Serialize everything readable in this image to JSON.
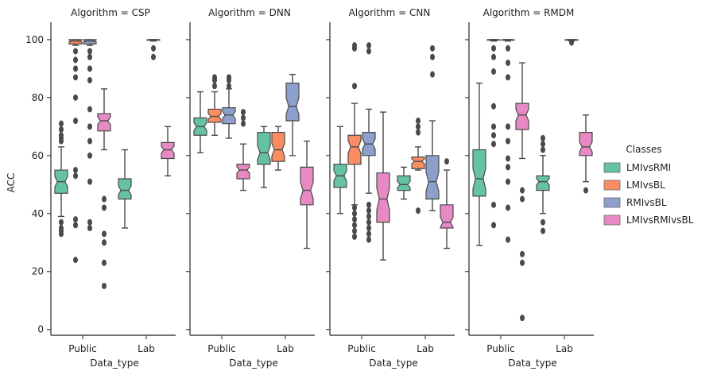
{
  "chart_data": {
    "type": "boxplot",
    "ylabel": "ACC",
    "xlabel": "Data_type",
    "ylim": [
      -2,
      106
    ],
    "yticks": [
      0,
      20,
      40,
      60,
      80,
      100
    ],
    "categories": [
      "Public",
      "Lab"
    ],
    "legend": {
      "title": "Classes",
      "placement": "right",
      "entries": [
        {
          "name": "LMIvsRMI",
          "color": "#66c2a5"
        },
        {
          "name": "LMIvsBL",
          "color": "#fc8d62"
        },
        {
          "name": "RMIvsBL",
          "color": "#8da0cb"
        },
        {
          "name": "LMIvsRMIvsBL",
          "color": "#e78ac3"
        }
      ]
    },
    "panels": [
      {
        "title": "Algorithm = CSP",
        "groups": [
          {
            "category": "Public",
            "series": "LMIvsRMI",
            "whislo": 39,
            "q1": 47,
            "med": 51,
            "q3": 55,
            "whishi": 63,
            "fliers": [
              71,
              69,
              67,
              66,
              65,
              37,
              35,
              34,
              33
            ]
          },
          {
            "category": "Public",
            "series": "LMIvsBL",
            "whislo": 98,
            "q1": 98.5,
            "med": 99.5,
            "q3": 100,
            "whishi": 100,
            "fliers": [
              96,
              93,
              90,
              87,
              80,
              72,
              55,
              53,
              38,
              36,
              24
            ]
          },
          {
            "category": "Public",
            "series": "RMIvsBL",
            "whislo": 98,
            "q1": 98.5,
            "med": 99.5,
            "q3": 100,
            "whishi": 100,
            "fliers": [
              96,
              94,
              90,
              86,
              76,
              70,
              65,
              60,
              51,
              37,
              35
            ]
          },
          {
            "category": "Public",
            "series": "LMIvsRMIvsBL",
            "whislo": 62,
            "q1": 68.5,
            "med": 72,
            "q3": 74.5,
            "whishi": 83,
            "fliers": [
              45,
              42,
              33,
              30,
              23,
              15
            ]
          },
          {
            "category": "Lab",
            "series": "LMIvsRMI",
            "whislo": 35,
            "q1": 45,
            "med": 48,
            "q3": 52,
            "whishi": 62,
            "fliers": []
          },
          {
            "category": "Lab",
            "series": "RMIvsBL",
            "whislo": 99.5,
            "q1": 99.8,
            "med": 100,
            "q3": 100,
            "whishi": 100,
            "fliers": [
              97,
              94
            ]
          },
          {
            "category": "Lab",
            "series": "LMIvsRMIvsBL",
            "whislo": 53,
            "q1": 59,
            "med": 62,
            "q3": 64.5,
            "whishi": 70,
            "fliers": []
          }
        ]
      },
      {
        "title": "Algorithm = DNN",
        "groups": [
          {
            "category": "Public",
            "series": "LMIvsRMI",
            "whislo": 61,
            "q1": 67,
            "med": 70,
            "q3": 73,
            "whishi": 82,
            "fliers": []
          },
          {
            "category": "Public",
            "series": "LMIvsBL",
            "whislo": 67,
            "q1": 71.5,
            "med": 73.5,
            "q3": 76,
            "whishi": 82,
            "fliers": [
              87,
              86,
              84
            ]
          },
          {
            "category": "Public",
            "series": "RMIvsBL",
            "whislo": 66,
            "q1": 71,
            "med": 74,
            "q3": 76.5,
            "whishi": 83,
            "fliers": [
              87,
              86,
              84
            ]
          },
          {
            "category": "Public",
            "series": "LMIvsRMIvsBL",
            "whislo": 48,
            "q1": 52,
            "med": 55,
            "q3": 57,
            "whishi": 64,
            "fliers": [
              75,
              73,
              71
            ]
          },
          {
            "category": "Lab",
            "series": "LMIvsRMI",
            "whislo": 49,
            "q1": 57,
            "med": 61,
            "q3": 68,
            "whishi": 70,
            "fliers": []
          },
          {
            "category": "Lab",
            "series": "LMIvsBL",
            "whislo": 55,
            "q1": 58,
            "med": 62,
            "q3": 68,
            "whishi": 70,
            "fliers": []
          },
          {
            "category": "Lab",
            "series": "RMIvsBL",
            "whislo": 60,
            "q1": 72,
            "med": 77,
            "q3": 85,
            "whishi": 88,
            "fliers": []
          },
          {
            "category": "Lab",
            "series": "LMIvsRMIvsBL",
            "whislo": 28,
            "q1": 43,
            "med": 48,
            "q3": 56,
            "whishi": 65,
            "fliers": []
          }
        ]
      },
      {
        "title": "Algorithm = CNN",
        "groups": [
          {
            "category": "Public",
            "series": "LMIvsRMI",
            "whislo": 40,
            "q1": 49,
            "med": 53,
            "q3": 57,
            "whishi": 70,
            "fliers": []
          },
          {
            "category": "Public",
            "series": "LMIvsBL",
            "whislo": 43,
            "q1": 57,
            "med": 63,
            "q3": 67,
            "whishi": 78,
            "fliers": [
              98,
              97,
              84,
              42,
              40,
              38,
              36,
              34,
              32
            ]
          },
          {
            "category": "Public",
            "series": "RMIvsBL",
            "whislo": 47,
            "q1": 60,
            "med": 64,
            "q3": 68,
            "whishi": 76,
            "fliers": [
              98,
              96,
              43,
              41,
              39,
              37,
              35,
              33,
              31
            ]
          },
          {
            "category": "Public",
            "series": "LMIvsRMIvsBL",
            "whislo": 24,
            "q1": 37,
            "med": 45,
            "q3": 54,
            "whishi": 75,
            "fliers": []
          },
          {
            "category": "Lab",
            "series": "LMIvsRMI",
            "whislo": 45,
            "q1": 48,
            "med": 50,
            "q3": 53,
            "whishi": 56,
            "fliers": []
          },
          {
            "category": "Lab",
            "series": "LMIvsBL",
            "whislo": 55,
            "q1": 55.5,
            "med": 58,
            "q3": 59.5,
            "whishi": 63,
            "fliers": [
              72,
              70,
              68,
              41
            ]
          },
          {
            "category": "Lab",
            "series": "RMIvsBL",
            "whislo": 41,
            "q1": 45,
            "med": 51,
            "q3": 60,
            "whishi": 72,
            "fliers": [
              97,
              94,
              88
            ]
          },
          {
            "category": "Lab",
            "series": "LMIvsRMIvsBL",
            "whislo": 28,
            "q1": 35,
            "med": 37,
            "q3": 43,
            "whishi": 55,
            "fliers": [
              58
            ]
          }
        ]
      },
      {
        "title": "Algorithm = RMDM",
        "groups": [
          {
            "category": "Public",
            "series": "LMIvsRMI",
            "whislo": 29,
            "q1": 46,
            "med": 52,
            "q3": 62,
            "whishi": 85,
            "fliers": []
          },
          {
            "category": "Public",
            "series": "LMIvsBL",
            "whislo": 99.5,
            "q1": 99.8,
            "med": 100,
            "q3": 100,
            "whishi": 100,
            "fliers": [
              97,
              94,
              89,
              77,
              70,
              67,
              64,
              43,
              36
            ]
          },
          {
            "category": "Public",
            "series": "RMIvsBL",
            "whislo": 99.5,
            "q1": 99.8,
            "med": 100,
            "q3": 100,
            "whishi": 100,
            "fliers": [
              97,
              92,
              87,
              70,
              65,
              59,
              56,
              51,
              42,
              31
            ]
          },
          {
            "category": "Public",
            "series": "LMIvsRMIvsBL",
            "whislo": 59,
            "q1": 69,
            "med": 74,
            "q3": 78,
            "whishi": 92,
            "fliers": [
              48,
              45,
              26,
              23,
              4
            ]
          },
          {
            "category": "Lab",
            "series": "LMIvsRMI",
            "whislo": 40,
            "q1": 48,
            "med": 51,
            "q3": 53,
            "whishi": 60,
            "fliers": [
              66,
              64,
              62,
              37,
              34
            ]
          },
          {
            "category": "Lab",
            "series": "RMIvsBL",
            "whislo": 99.5,
            "q1": 99.8,
            "med": 100,
            "q3": 100,
            "whishi": 100,
            "fliers": [
              99
            ]
          },
          {
            "category": "Lab",
            "series": "LMIvsRMIvsBL",
            "whislo": 51,
            "q1": 60,
            "med": 63,
            "q3": 68,
            "whishi": 74,
            "fliers": [
              48
            ]
          }
        ]
      }
    ]
  }
}
